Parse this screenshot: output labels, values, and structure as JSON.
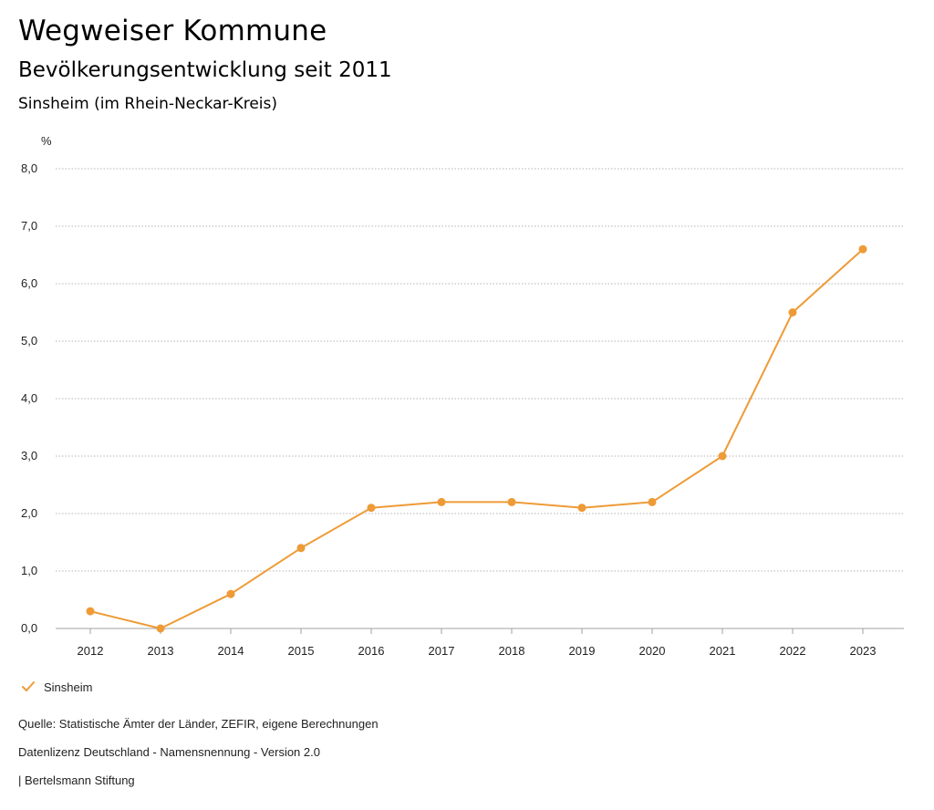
{
  "header": {
    "title": "Wegweiser Kommune",
    "subtitle": "Bevölkerungsentwicklung seit 2011",
    "location": "Sinsheim (im Rhein-Neckar-Kreis)"
  },
  "chart_data": {
    "type": "line",
    "title": "Bevölkerungsentwicklung seit 2011",
    "ylabel": "%",
    "xlabel": "",
    "ylim": [
      0,
      8
    ],
    "yticks": [
      "0,0",
      "1,0",
      "2,0",
      "3,0",
      "4,0",
      "5,0",
      "6,0",
      "7,0",
      "8,0"
    ],
    "categories": [
      "2012",
      "2013",
      "2014",
      "2015",
      "2016",
      "2017",
      "2018",
      "2019",
      "2020",
      "2021",
      "2022",
      "2023"
    ],
    "series": [
      {
        "name": "Sinsheim",
        "color": "#EE9B37",
        "values": [
          0.3,
          0.0,
          0.6,
          1.4,
          2.1,
          2.2,
          2.2,
          2.1,
          2.2,
          3.0,
          5.5,
          6.6
        ]
      }
    ],
    "grid": true,
    "legend": "bottom-left"
  },
  "legend": {
    "label": "Sinsheim",
    "icon": "check-icon"
  },
  "footer": {
    "source": "Quelle: Statistische Ämter der Länder, ZEFIR, eigene Berechnungen",
    "license": "Datenlizenz Deutschland - Namensnennung - Version 2.0",
    "credit": "| Bertelsmann Stiftung"
  }
}
